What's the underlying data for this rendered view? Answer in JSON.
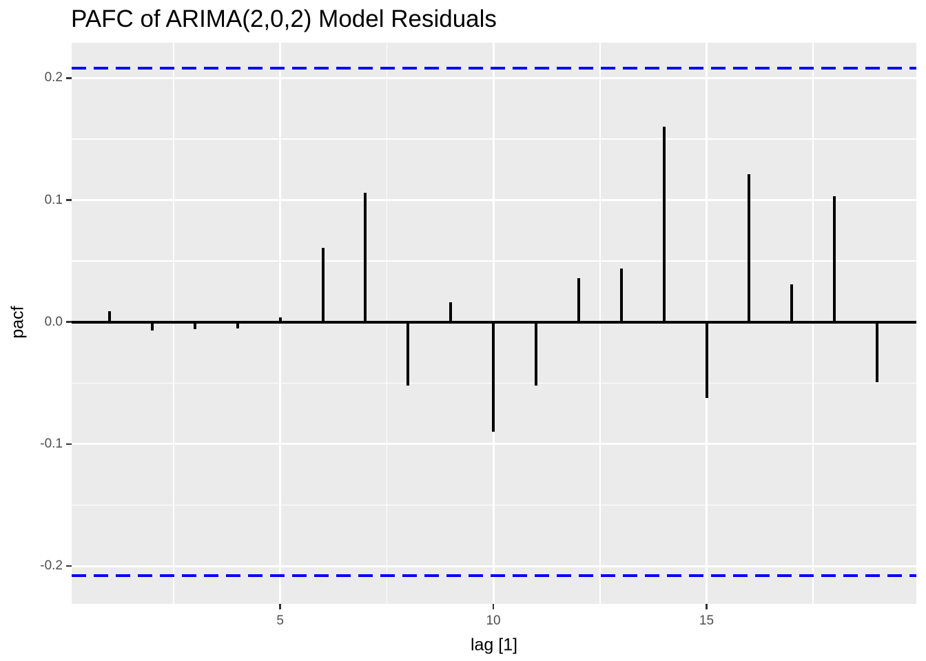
{
  "chart_data": {
    "type": "bar",
    "subtype": "lollipop-stems-pacf",
    "title": "PAFC of ARIMA(2,0,2) Model Residuals",
    "xlabel": "lag [1]",
    "ylabel": "pacf",
    "x": [
      1,
      2,
      3,
      4,
      5,
      6,
      7,
      8,
      9,
      10,
      11,
      12,
      13,
      14,
      15,
      16,
      17,
      18,
      19
    ],
    "values": [
      0.009,
      -0.007,
      -0.006,
      -0.005,
      0.004,
      0.061,
      0.106,
      -0.052,
      0.016,
      -0.09,
      -0.052,
      0.036,
      0.044,
      0.16,
      -0.062,
      0.121,
      0.031,
      0.103,
      -0.049
    ],
    "confidence_bounds": {
      "upper": 0.208,
      "lower": -0.208,
      "line_style": "dashed"
    },
    "xlim": [
      0.11,
      19.92
    ],
    "ylim": [
      -0.231,
      0.229
    ],
    "x_major_ticks": [
      {
        "value": 5,
        "label": "5"
      },
      {
        "value": 10,
        "label": "10"
      },
      {
        "value": 15,
        "label": "15"
      }
    ],
    "y_major_ticks": [
      {
        "value": 0.2,
        "label": "0.2"
      },
      {
        "value": 0.1,
        "label": "0.1"
      },
      {
        "value": 0.0,
        "label": "0.0"
      },
      {
        "value": -0.1,
        "label": "-0.1"
      },
      {
        "value": -0.2,
        "label": "-0.2"
      }
    ],
    "x_minor_gridlines": [
      2.5,
      7.5,
      12.5,
      17.5
    ],
    "y_minor_gridlines": [
      0.15,
      0.05,
      -0.05,
      -0.15
    ],
    "grid": true,
    "legend": null,
    "colors": {
      "panel_background": "#EBEBEB",
      "gridline_major": "#FFFFFF",
      "gridline_minor": "#FFFFFF",
      "bar": "#000000",
      "zero_line": "#000000",
      "ci_line": "#0000FF",
      "tick_label": "#4D4D4D",
      "tick_mark": "#333333",
      "title": "#000000",
      "axis_title": "#000000"
    }
  }
}
